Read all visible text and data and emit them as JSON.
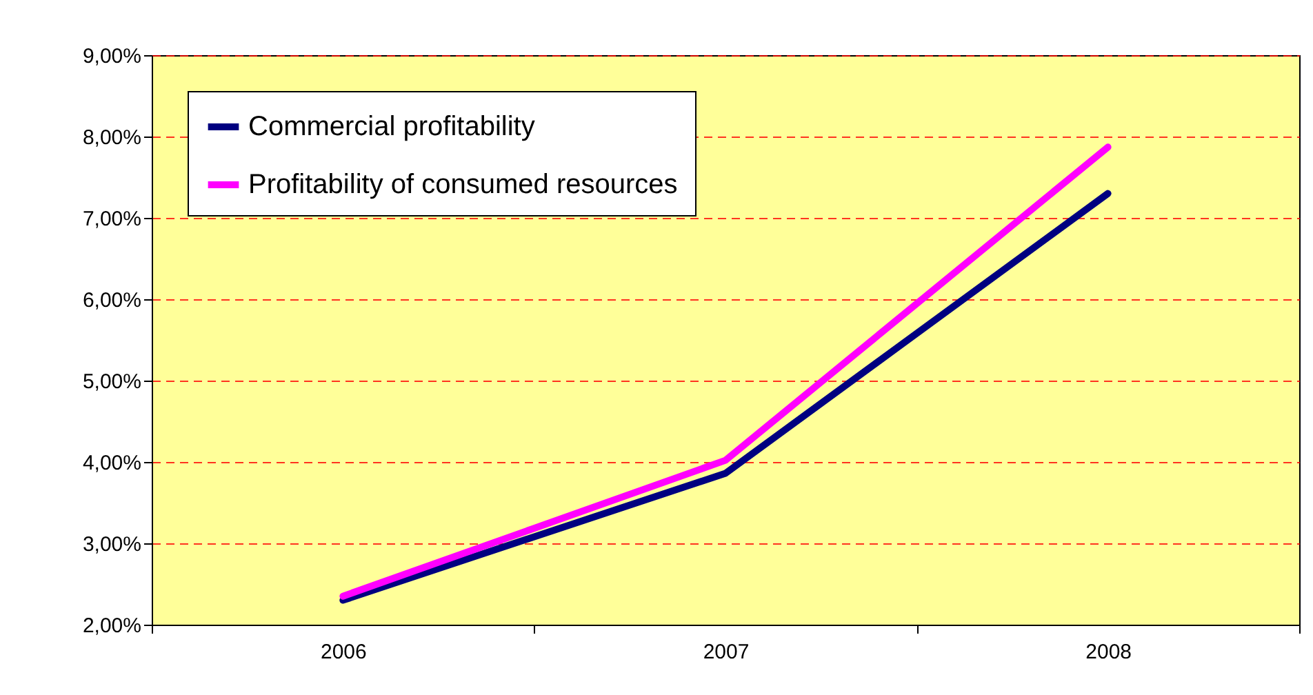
{
  "chart_data": {
    "type": "line",
    "categories": [
      "2006",
      "2007",
      "2008"
    ],
    "series": [
      {
        "name": "Commercial profitability",
        "color": "#000080",
        "values": [
          2.3,
          3.86,
          7.3
        ]
      },
      {
        "name": "Profitability of consumed resources",
        "color": "#ff00ff",
        "values": [
          2.35,
          4.02,
          7.87
        ]
      }
    ],
    "ylim": [
      2,
      9
    ],
    "yticks": [
      {
        "value": 2,
        "label": "2,00%"
      },
      {
        "value": 3,
        "label": "3,00%"
      },
      {
        "value": 4,
        "label": "4,00%"
      },
      {
        "value": 5,
        "label": "5,00%"
      },
      {
        "value": 6,
        "label": "6,00%"
      },
      {
        "value": 7,
        "label": "7,00%"
      },
      {
        "value": 8,
        "label": "8,00%"
      },
      {
        "value": 9,
        "label": "9,00%"
      }
    ],
    "grid": "y",
    "legend": "top left",
    "marker": "none",
    "line_style": "solid"
  }
}
